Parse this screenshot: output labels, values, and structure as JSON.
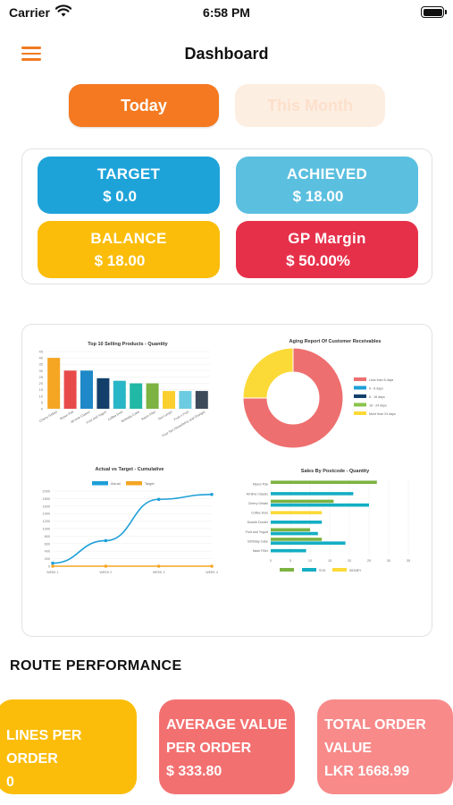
{
  "status_bar": {
    "carrier": "Carrier",
    "time": "6:58 PM"
  },
  "header": {
    "title": "Dashboard"
  },
  "tabs": {
    "today": "Today",
    "this_month": "This Month",
    "active": "today"
  },
  "kpis": {
    "target": {
      "label": "TARGET",
      "value": "$ 0.0"
    },
    "achieved": {
      "label": "ACHIEVED",
      "value": "$ 18.00"
    },
    "balance": {
      "label": "BALANCE",
      "value": "$ 18.00"
    },
    "gp_margin": {
      "label": "GP Margin",
      "value": "$ 50.00%"
    }
  },
  "chart_data": [
    {
      "type": "bar",
      "title": "Top 10 Selling Products - Quantity",
      "categories": [
        "Cherry Gelato",
        "Mysor Pak",
        "All time Classic",
        "Fruit and Yogurt",
        "Coffee Dots",
        "Birthday Cake",
        "Rasin Filler",
        "Nut Lumps",
        "Fruit n Fruit",
        "Fruit Tart (Strawberry and Orange)"
      ],
      "values": [
        40,
        30,
        30,
        24,
        22,
        20,
        20,
        14,
        14,
        14
      ],
      "ylim": [
        0,
        45
      ],
      "yticks": [
        "0",
        "5",
        "10",
        "15",
        "20",
        "25",
        "30",
        "35",
        "40",
        "45"
      ],
      "colors": [
        "#f4a623",
        "#e84a4a",
        "#1e88c8",
        "#12406b",
        "#29b6c6",
        "#22b8a6",
        "#7cb342",
        "#fbd02e",
        "#6ccbe0",
        "#3d4a5a"
      ]
    },
    {
      "type": "pie",
      "title": "Aging Report Of Customer Receivables",
      "labels": [
        "Less than 6 days",
        "6 - 8 days",
        "8 - 16 days",
        "16 - 24 days",
        "More than 24 days"
      ],
      "values": [
        75,
        0,
        0,
        0,
        25
      ],
      "colors": [
        "#ee6f6f",
        "#1e9fd8",
        "#12406b",
        "#8bc34a",
        "#fbd937"
      ],
      "legend": "right"
    },
    {
      "type": "line",
      "title": "Actual vs Target - Cumulative",
      "categories": [
        "WEEK 1",
        "WEEK 2",
        "WEEK 3",
        "WEEK 4"
      ],
      "series": [
        {
          "name": "Actual",
          "values": [
            80,
            680,
            1780,
            1910
          ],
          "color": "#1e9fd8"
        },
        {
          "name": "Target",
          "values": [
            0,
            0,
            0,
            0
          ],
          "color": "#f4a623"
        }
      ],
      "ylim": [
        0,
        2000
      ],
      "yticks": [
        "0",
        "200",
        "400",
        "600",
        "800",
        "1000",
        "1200",
        "1400",
        "1600",
        "1800",
        "2000"
      ]
    },
    {
      "type": "bar",
      "orientation": "horizontal",
      "title": "Sales By Postcode - Quantity",
      "categories": [
        "Mysor Pak",
        "All time Classic",
        "Cherry Gelato",
        "Coffee Dots",
        "Double Dorder",
        "Fruit and Yogurt",
        "Birthday Cake",
        "Nash Filler"
      ],
      "series": [
        {
          "name": "",
          "values": [
            27,
            0,
            0,
            0,
            0,
            0,
            0,
            0
          ],
          "color": "#7cb342"
        },
        {
          "name": "SYD",
          "values": [
            0,
            21,
            25,
            0,
            13,
            12,
            19,
            9
          ],
          "color": "#14aec3"
        },
        {
          "name": "SIDNEY",
          "values": [
            0,
            0,
            0,
            13,
            0,
            0,
            0,
            0
          ],
          "color": "#fbd937"
        }
      ],
      "extra": {
        "cherry_green": 16,
        "fruit_green": 10,
        "birthday_green": 13
      },
      "xlim": [
        0,
        35
      ],
      "xticks": [
        "0",
        "5",
        "10",
        "15",
        "20",
        "25",
        "30",
        "35"
      ]
    }
  ],
  "route_performance": {
    "title": "ROUTE PERFORMANCE",
    "lines_per_order": {
      "label": "LINES PER ORDER",
      "value": "0"
    },
    "average_value": {
      "label": "AVERAGE VALUE PER ORDER",
      "value": "$ 333.80"
    },
    "total_order": {
      "label": "TOTAL ORDER VALUE",
      "value": "LKR 1668.99"
    }
  }
}
